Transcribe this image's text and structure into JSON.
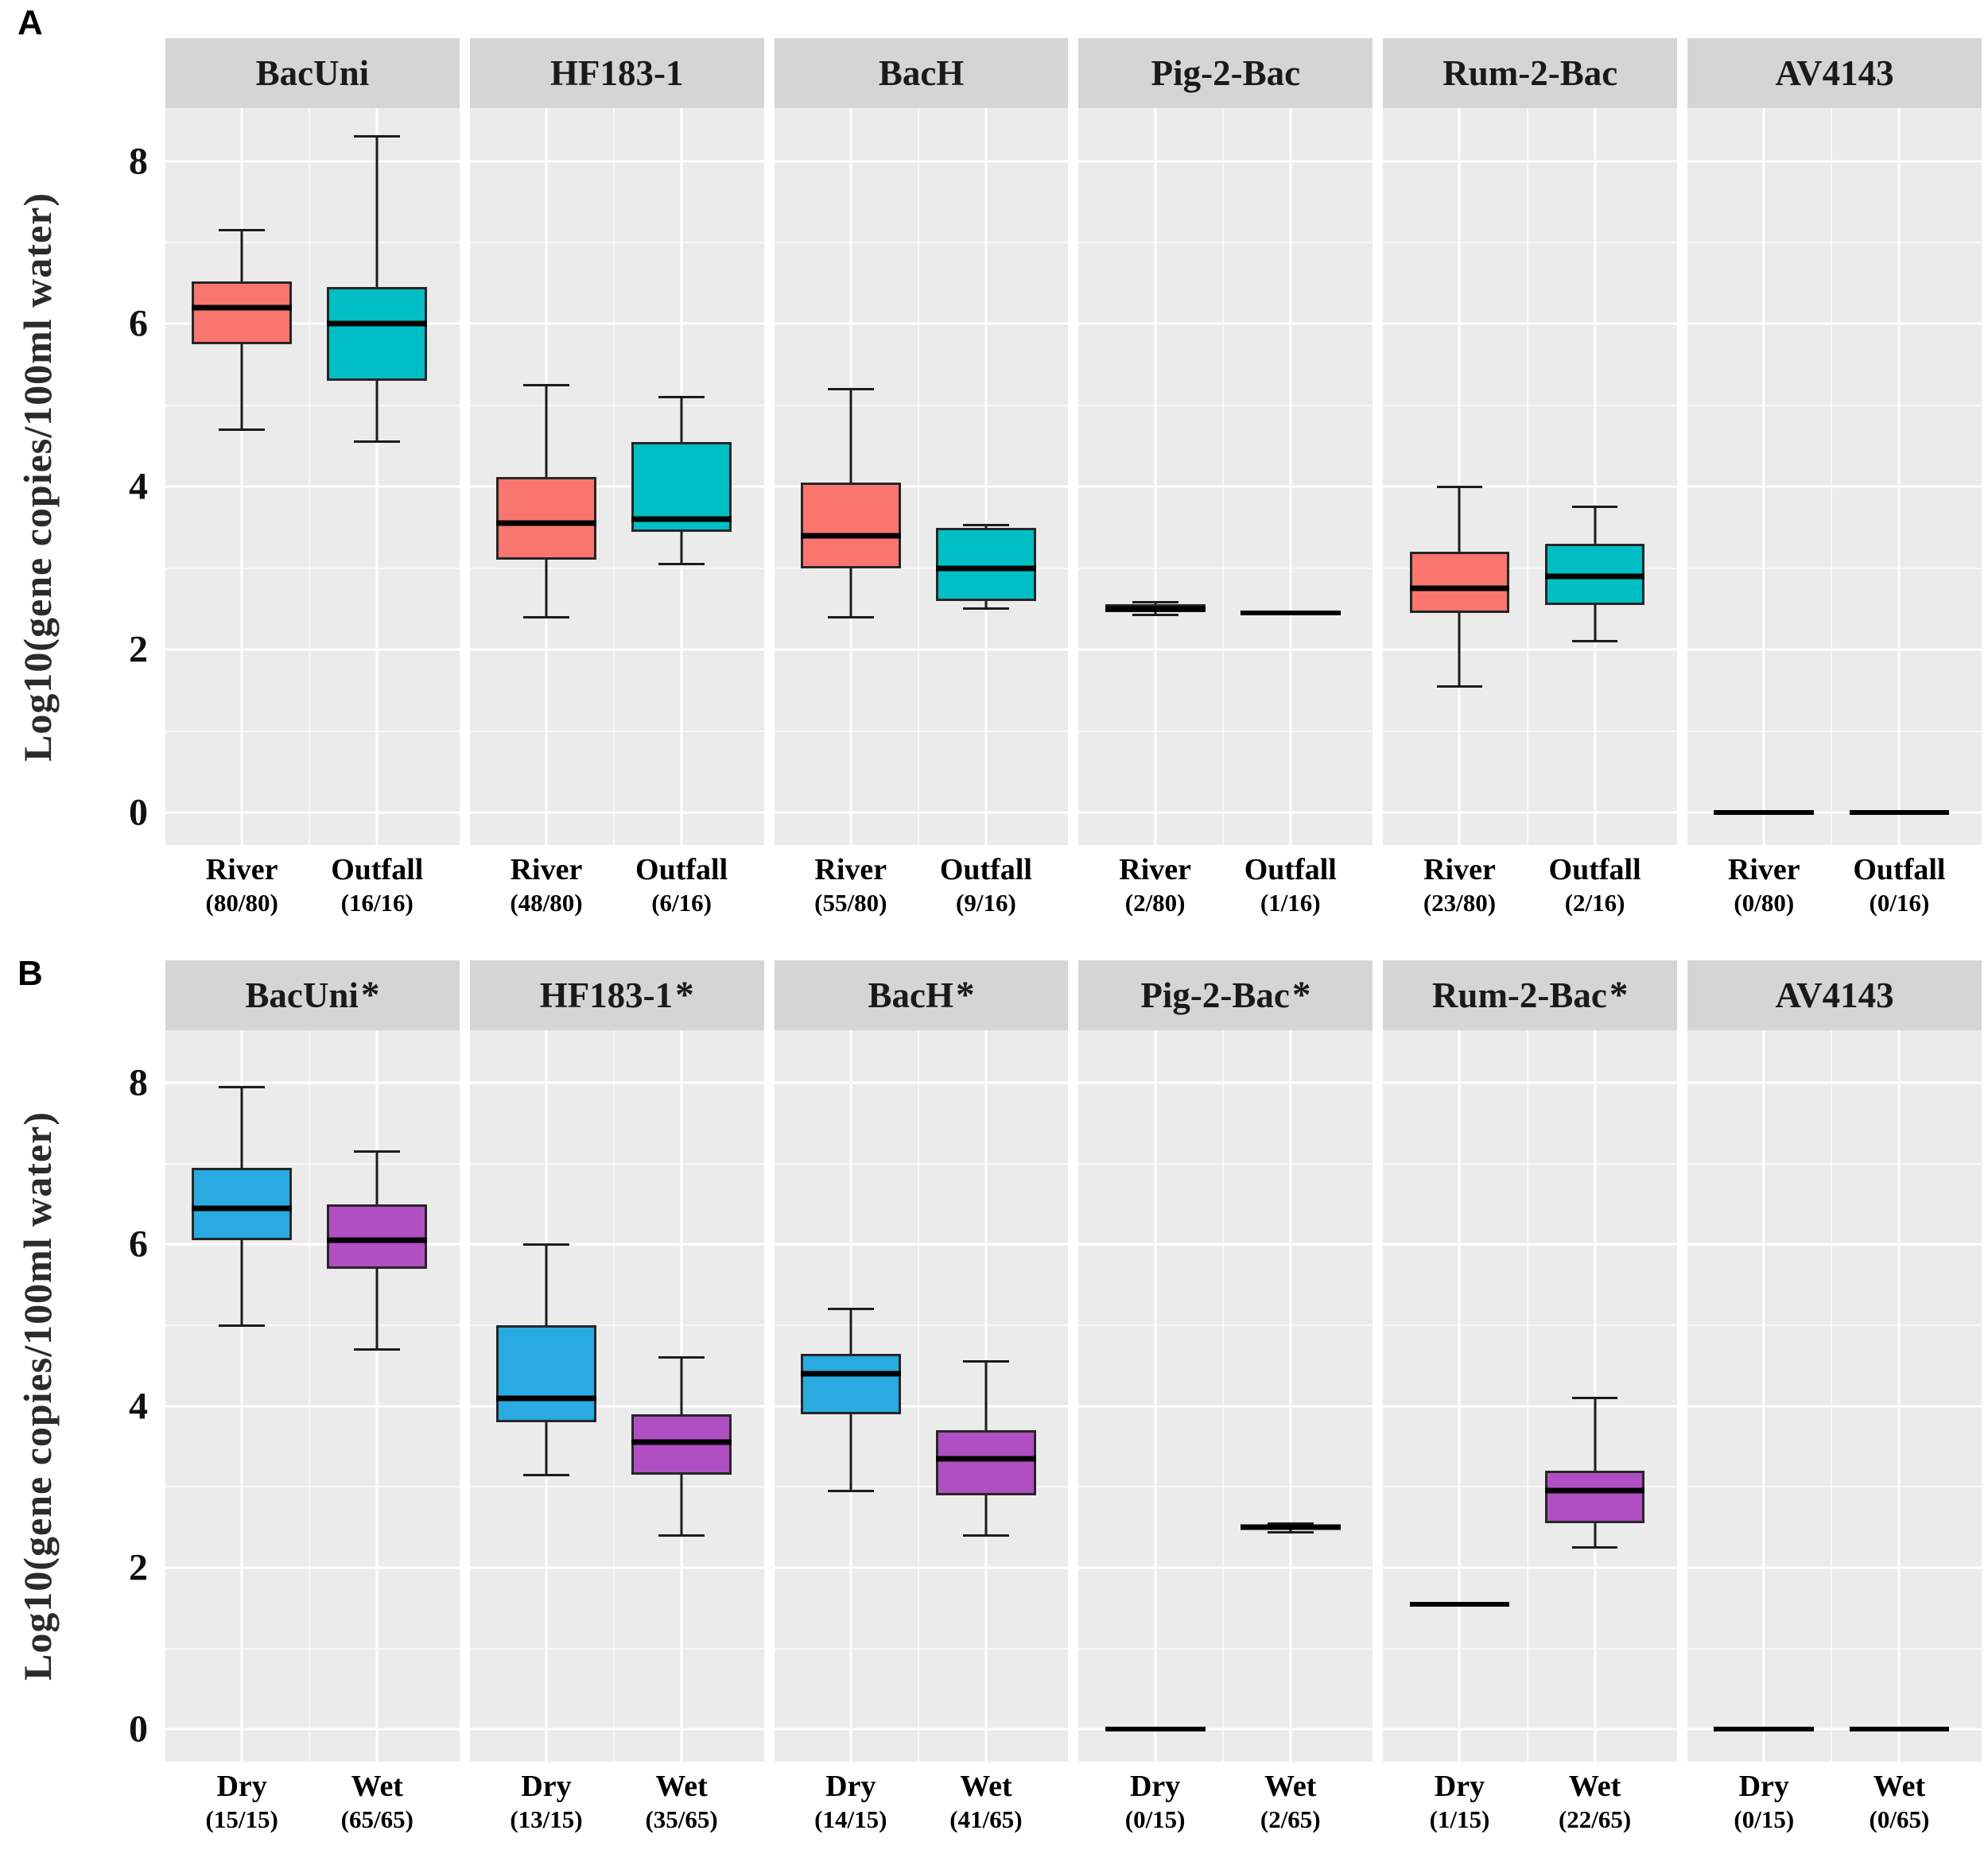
{
  "chart_data": {
    "type": "boxplot",
    "ylabel": "Log10(gene copies/100ml water)",
    "y_ticks": [
      8,
      6,
      4,
      2,
      0
    ],
    "ylim": [
      -0.4,
      8.65
    ],
    "grid": "on",
    "legend": "none",
    "panel_background": "#ebebeb",
    "header_background": "#d5d5d5",
    "panels": [
      {
        "letter": "A",
        "group_colors": [
          "#F8766D",
          "#00BFC4"
        ],
        "facets": [
          {
            "title": "BacUni",
            "significant": false,
            "groups": [
              {
                "label": "River",
                "count": "(80/80)",
                "min": 4.7,
                "q1": 5.75,
                "median": 6.2,
                "q3": 6.52,
                "max": 7.15
              },
              {
                "label": "Outfall",
                "count": "(16/16)",
                "min": 4.55,
                "q1": 5.3,
                "median": 6.0,
                "q3": 6.45,
                "max": 8.3
              }
            ]
          },
          {
            "title": "HF183-1",
            "significant": false,
            "groups": [
              {
                "label": "River",
                "count": "(48/80)",
                "min": 2.4,
                "q1": 3.1,
                "median": 3.55,
                "q3": 4.12,
                "max": 5.25
              },
              {
                "label": "Outfall",
                "count": "(6/16)",
                "min": 3.05,
                "q1": 3.45,
                "median": 3.6,
                "q3": 4.55,
                "max": 5.1
              }
            ]
          },
          {
            "title": "BacH",
            "significant": false,
            "groups": [
              {
                "label": "River",
                "count": "(55/80)",
                "min": 2.4,
                "q1": 3.0,
                "median": 3.4,
                "q3": 4.05,
                "max": 5.2
              },
              {
                "label": "Outfall",
                "count": "(9/16)",
                "min": 2.5,
                "q1": 2.6,
                "median": 3.0,
                "q3": 3.5,
                "max": 3.53
              }
            ]
          },
          {
            "title": "Pig-2-Bac",
            "significant": false,
            "groups": [
              {
                "label": "River",
                "count": "(2/80)",
                "min": 2.43,
                "q1": 2.46,
                "median": 2.5,
                "q3": 2.56,
                "max": 2.58
              },
              {
                "label": "Outfall",
                "count": "(1/16)",
                "min": 2.45,
                "q1": 2.45,
                "median": 2.45,
                "q3": 2.45,
                "max": 2.45
              }
            ]
          },
          {
            "title": "Rum-2-Bac",
            "significant": false,
            "groups": [
              {
                "label": "River",
                "count": "(23/80)",
                "min": 1.55,
                "q1": 2.45,
                "median": 2.75,
                "q3": 3.2,
                "max": 4.0
              },
              {
                "label": "Outfall",
                "count": "(2/16)",
                "min": 2.1,
                "q1": 2.55,
                "median": 2.9,
                "q3": 3.3,
                "max": 3.75
              }
            ]
          },
          {
            "title": "AV4143",
            "significant": false,
            "groups": [
              {
                "label": "River",
                "count": "(0/80)",
                "min": 0,
                "q1": 0,
                "median": 0,
                "q3": 0,
                "max": 0
              },
              {
                "label": "Outfall",
                "count": "(0/16)",
                "min": 0,
                "q1": 0,
                "median": 0,
                "q3": 0,
                "max": 0
              }
            ]
          }
        ]
      },
      {
        "letter": "B",
        "group_colors": [
          "#29ABE2",
          "#B04EC3"
        ],
        "facets": [
          {
            "title": "BacUni",
            "significant": true,
            "groups": [
              {
                "label": "Dry",
                "count": "(15/15)",
                "min": 5.0,
                "q1": 6.05,
                "median": 6.45,
                "q3": 6.95,
                "max": 7.95
              },
              {
                "label": "Wet",
                "count": "(65/65)",
                "min": 4.7,
                "q1": 5.7,
                "median": 6.05,
                "q3": 6.5,
                "max": 7.15
              }
            ]
          },
          {
            "title": "HF183-1",
            "significant": true,
            "groups": [
              {
                "label": "Dry",
                "count": "(13/15)",
                "min": 3.15,
                "q1": 3.8,
                "median": 4.1,
                "q3": 5.0,
                "max": 6.0
              },
              {
                "label": "Wet",
                "count": "(35/65)",
                "min": 2.4,
                "q1": 3.15,
                "median": 3.55,
                "q3": 3.9,
                "max": 4.6
              }
            ]
          },
          {
            "title": "BacH",
            "significant": true,
            "groups": [
              {
                "label": "Dry",
                "count": "(14/15)",
                "min": 2.95,
                "q1": 3.9,
                "median": 4.4,
                "q3": 4.65,
                "max": 5.2
              },
              {
                "label": "Wet",
                "count": "(41/65)",
                "min": 2.4,
                "q1": 2.9,
                "median": 3.35,
                "q3": 3.7,
                "max": 4.55
              }
            ]
          },
          {
            "title": "Pig-2-Bac",
            "significant": true,
            "groups": [
              {
                "label": "Dry",
                "count": "(0/15)",
                "min": 0,
                "q1": 0,
                "median": 0,
                "q3": 0,
                "max": 0
              },
              {
                "label": "Wet",
                "count": "(2/65)",
                "min": 2.44,
                "q1": 2.47,
                "median": 2.5,
                "q3": 2.53,
                "max": 2.55
              }
            ]
          },
          {
            "title": "Rum-2-Bac",
            "significant": true,
            "groups": [
              {
                "label": "Dry",
                "count": "(1/15)",
                "min": 1.55,
                "q1": 1.55,
                "median": 1.55,
                "q3": 1.55,
                "max": 1.55
              },
              {
                "label": "Wet",
                "count": "(22/65)",
                "min": 2.25,
                "q1": 2.55,
                "median": 2.95,
                "q3": 3.2,
                "max": 4.1
              }
            ]
          },
          {
            "title": "AV4143",
            "significant": false,
            "groups": [
              {
                "label": "Dry",
                "count": "(0/15)",
                "min": 0,
                "q1": 0,
                "median": 0,
                "q3": 0,
                "max": 0
              },
              {
                "label": "Wet",
                "count": "(0/65)",
                "min": 0,
                "q1": 0,
                "median": 0,
                "q3": 0,
                "max": 0
              }
            ]
          }
        ]
      }
    ]
  }
}
